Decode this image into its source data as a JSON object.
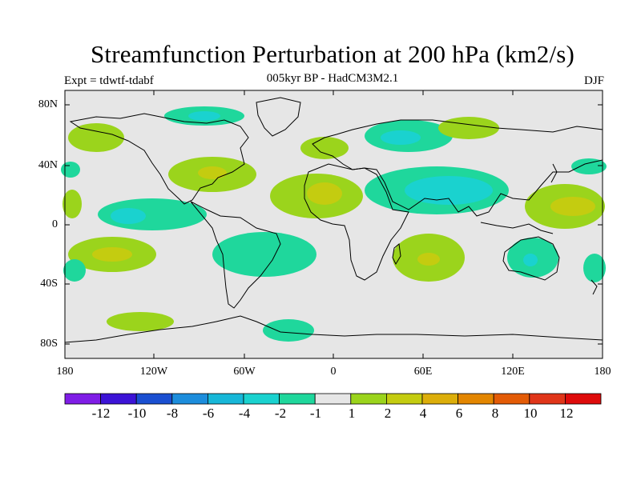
{
  "title": "Streamfunction Perturbation at 200 hPa (km2/s)",
  "subtitle": "005kyr BP - HadCM3M2.1",
  "expt": "Expt = tdwtf-tdabf",
  "season": "DJF",
  "lat_labels": [
    "80N",
    "40N",
    "0",
    "40S",
    "80S"
  ],
  "lon_labels": [
    "180",
    "120W",
    "60W",
    "0",
    "60E",
    "120E",
    "180"
  ],
  "colorbar": {
    "colors": [
      "#7f1de6",
      "#3c13d6",
      "#1a4fd1",
      "#1c8ddc",
      "#17b7d8",
      "#1ad2cf",
      "#1fd79c",
      "#e6e6e6",
      "#9bd41c",
      "#c4cc10",
      "#dcae0a",
      "#e38600",
      "#e35b06",
      "#e03519",
      "#de0b0b"
    ],
    "labels": [
      "-12",
      "-10",
      "-8",
      "-6",
      "-4",
      "-2",
      "-1",
      "1",
      "2",
      "4",
      "6",
      "8",
      "10",
      "12"
    ]
  }
}
